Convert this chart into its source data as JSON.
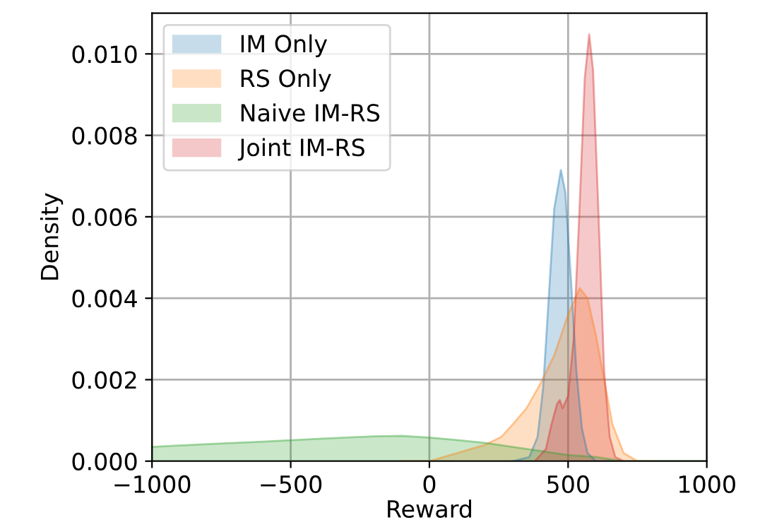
{
  "chart_data": {
    "type": "area",
    "xlabel": "Reward",
    "ylabel": "Density",
    "xlim": [
      -1000,
      1000
    ],
    "xticks": [
      {
        "value": -1000,
        "label": "−1000"
      },
      {
        "value": -500,
        "label": "−500"
      },
      0,
      500,
      1000
    ],
    "ylim": [
      0,
      0.011
    ],
    "yticks": [
      {
        "value": 0,
        "label": "0.000"
      },
      0.002,
      0.004,
      0.006,
      0.008,
      {
        "value": 0.01,
        "label": "0.010"
      }
    ],
    "grid": true,
    "legend": "top left",
    "series": [
      {
        "name": "IM Only",
        "color": "#1f77b4",
        "x": [
          300,
          360,
          390,
          410,
          430,
          450,
          474,
          490,
          510,
          530,
          550,
          570,
          600,
          650
        ],
        "values": [
          0,
          0.0001,
          0.0006,
          0.0018,
          0.004,
          0.0062,
          0.00715,
          0.0066,
          0.0045,
          0.0022,
          0.0008,
          0.0002,
          0,
          0
        ]
      },
      {
        "name": "RS Only",
        "color": "#ff7f0e",
        "x": [
          -100,
          0,
          100,
          200,
          260,
          300,
          350,
          400,
          450,
          500,
          542,
          570,
          600,
          630,
          660,
          700,
          750,
          800
        ],
        "values": [
          0,
          0,
          0.0002,
          0.0004,
          0.0006,
          0.0009,
          0.0013,
          0.0019,
          0.0026,
          0.0036,
          0.00425,
          0.004,
          0.0031,
          0.002,
          0.0009,
          0.0002,
          0,
          0
        ]
      },
      {
        "name": "Naive IM-RS",
        "color": "#2ca02c",
        "x": [
          -1000,
          -800,
          -600,
          -400,
          -200,
          -100,
          0,
          100,
          200,
          300,
          400,
          500,
          600,
          700,
          800,
          1000
        ],
        "values": [
          0.00035,
          0.00042,
          0.00048,
          0.00055,
          0.00061,
          0.00062,
          0.00058,
          0.00052,
          0.00045,
          0.00035,
          0.00025,
          0.00015,
          0.0001,
          0,
          0,
          0
        ]
      },
      {
        "name": "Joint IM-RS",
        "color": "#d62728",
        "x": [
          380,
          420,
          440,
          460,
          470,
          480,
          500,
          520,
          540,
          560,
          576,
          590,
          610,
          630,
          650,
          670,
          700
        ],
        "values": [
          0,
          0.0003,
          0.0009,
          0.0014,
          0.0015,
          0.0013,
          0.0016,
          0.003,
          0.006,
          0.0094,
          0.01048,
          0.0096,
          0.006,
          0.0022,
          0.0006,
          0.0001,
          0
        ]
      }
    ]
  }
}
